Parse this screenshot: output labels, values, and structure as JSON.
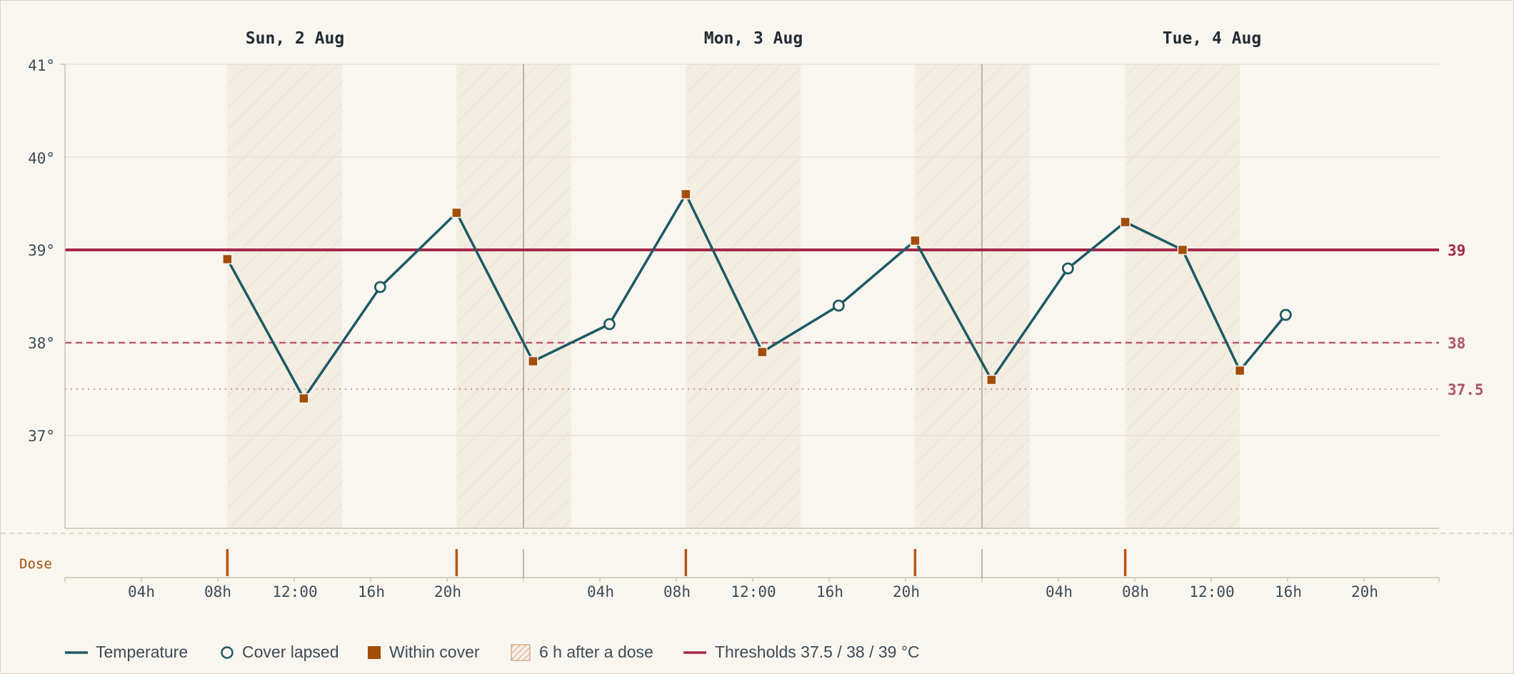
{
  "chart_data": {
    "type": "line",
    "day_labels": [
      "Sun, 2 Aug",
      "Mon, 3 Aug",
      "Tue, 4 Aug"
    ],
    "y_tick_labels": [
      "41°",
      "40°",
      "39°",
      "38°",
      "37°"
    ],
    "y_tick_values": [
      41,
      40,
      39,
      38,
      37
    ],
    "ylim": [
      36,
      41
    ],
    "x_tick_labels": [
      "04h",
      "08h",
      "12:00",
      "16h",
      "20h"
    ],
    "x_tick_hours": [
      4,
      8,
      12,
      16,
      20
    ],
    "dose_label": "Dose",
    "doses_hours": [
      8.5,
      20.5,
      32.5,
      44.5,
      55.5
    ],
    "cover_window_hours": 6,
    "series": [
      {
        "name": "Temperature",
        "points": [
          {
            "h": 8.5,
            "v": 38.9,
            "status": "within"
          },
          {
            "h": 12.5,
            "v": 37.4,
            "status": "within"
          },
          {
            "h": 16.5,
            "v": 38.6,
            "status": "lapsed"
          },
          {
            "h": 20.5,
            "v": 39.4,
            "status": "within"
          },
          {
            "h": 24.5,
            "v": 37.8,
            "status": "within"
          },
          {
            "h": 28.5,
            "v": 38.2,
            "status": "lapsed"
          },
          {
            "h": 32.5,
            "v": 39.6,
            "status": "within"
          },
          {
            "h": 36.5,
            "v": 37.9,
            "status": "within"
          },
          {
            "h": 40.5,
            "v": 38.4,
            "status": "lapsed"
          },
          {
            "h": 44.5,
            "v": 39.1,
            "status": "within"
          },
          {
            "h": 48.5,
            "v": 37.6,
            "status": "within"
          },
          {
            "h": 52.5,
            "v": 38.8,
            "status": "lapsed"
          },
          {
            "h": 55.5,
            "v": 39.3,
            "status": "within"
          },
          {
            "h": 58.5,
            "v": 39.0,
            "status": "within"
          },
          {
            "h": 61.5,
            "v": 37.7,
            "status": "within"
          },
          {
            "h": 63.9,
            "v": 38.3,
            "status": "lapsed"
          }
        ]
      }
    ],
    "thresholds": [
      {
        "value": 39,
        "label": "39",
        "style": "solid"
      },
      {
        "value": 38,
        "label": "38",
        "style": "dashed"
      },
      {
        "value": 37.5,
        "label": "37.5",
        "style": "dotted"
      }
    ],
    "legend": {
      "temperature": "Temperature",
      "cover_lapsed": "Cover lapsed",
      "within_cover": "Within cover",
      "after_dose": "6 h after a dose",
      "thresholds": "Thresholds 37.5 / 38 / 39 °C"
    },
    "colors": {
      "line": "#1d5a63",
      "within": "#a34d0a",
      "threshold": "#a3284a",
      "dose": "#b5570f",
      "grid": "#e4dfd4",
      "axis": "#c9c2b4",
      "day_sep": "#9a958c",
      "text": "#3d4a55"
    }
  }
}
